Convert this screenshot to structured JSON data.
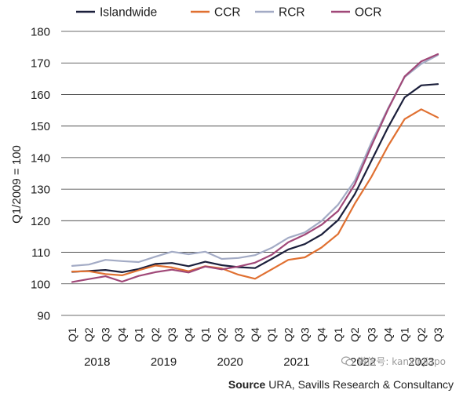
{
  "chart_data": {
    "type": "line",
    "ylabel": "Q1/2009 = 100",
    "ylim": [
      90,
      180
    ],
    "yticks": [
      90,
      100,
      110,
      120,
      130,
      140,
      150,
      160,
      170,
      180
    ],
    "grid": "horizontal",
    "legend_position": "top",
    "categories": [
      "Q1",
      "Q2",
      "Q3",
      "Q4",
      "Q1",
      "Q2",
      "Q3",
      "Q4",
      "Q1",
      "Q2",
      "Q3",
      "Q4",
      "Q1",
      "Q2",
      "Q3",
      "Q4",
      "Q1",
      "Q2",
      "Q3",
      "Q4",
      "Q1",
      "Q2",
      "Q3"
    ],
    "years": [
      {
        "label": "2018",
        "start": 0,
        "end": 3
      },
      {
        "label": "2019",
        "start": 4,
        "end": 7
      },
      {
        "label": "2020",
        "start": 8,
        "end": 11
      },
      {
        "label": "2021",
        "start": 12,
        "end": 15
      },
      {
        "label": "2022",
        "start": 16,
        "end": 19
      },
      {
        "label": "2023",
        "start": 20,
        "end": 22
      }
    ],
    "series": [
      {
        "name": "Islandwide",
        "color": "#1b1f3b",
        "values": [
          103.8,
          104.1,
          104.4,
          103.7,
          104.7,
          106.3,
          106.6,
          105.6,
          107.0,
          105.9,
          105.3,
          105.0,
          107.9,
          110.9,
          112.6,
          115.6,
          120.2,
          128.4,
          139.0,
          149.6,
          159.1,
          162.9,
          163.3
        ]
      },
      {
        "name": "CCR",
        "color": "#e07031",
        "values": [
          103.9,
          104.0,
          103.1,
          102.7,
          104.3,
          105.8,
          105.2,
          104.0,
          105.6,
          104.9,
          102.9,
          101.6,
          104.6,
          107.6,
          108.4,
          111.5,
          115.8,
          125.4,
          133.9,
          143.7,
          152.2,
          155.3,
          152.7
        ]
      },
      {
        "name": "RCR",
        "color": "#a3abc5",
        "values": [
          105.7,
          106.1,
          107.6,
          107.2,
          106.9,
          108.6,
          110.2,
          109.4,
          110.2,
          107.9,
          108.2,
          109.1,
          111.4,
          114.6,
          116.3,
          119.9,
          125.1,
          132.7,
          144.8,
          155.6,
          165.5,
          169.7,
          172.5
        ]
      },
      {
        "name": "OCR",
        "color": "#a04878",
        "values": [
          100.6,
          101.5,
          102.4,
          100.7,
          102.5,
          103.7,
          104.5,
          103.6,
          105.5,
          104.6,
          105.5,
          106.7,
          109.2,
          113.2,
          115.6,
          118.7,
          123.1,
          131.5,
          143.7,
          155.3,
          165.7,
          170.5,
          172.8
        ]
      }
    ]
  },
  "source": {
    "label": "Source",
    "text": "URA, Savills Research & Consultancy"
  },
  "watermark": {
    "text": "微信号: kanxinjiapo"
  }
}
